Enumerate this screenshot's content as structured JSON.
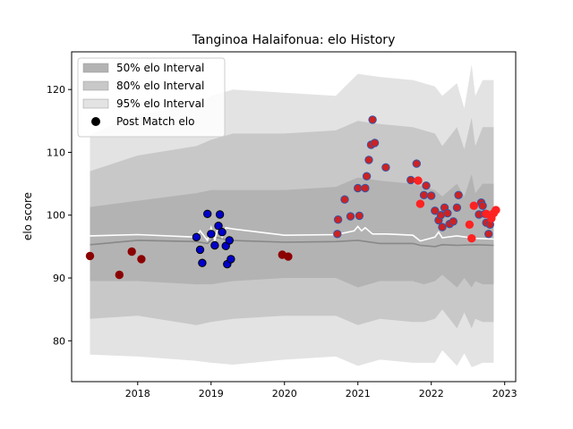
{
  "chart_data": {
    "type": "scatter",
    "title": "Tanginoa Halaifonua: elo History",
    "xlabel": "",
    "ylabel": "elo score",
    "xlim": [
      2017.1,
      2023.15
    ],
    "ylim": [
      73.5,
      126
    ],
    "x_ticks": [
      2018,
      2019,
      2020,
      2021,
      2022,
      2023
    ],
    "x_tick_labels": [
      "2018",
      "2019",
      "2020",
      "2021",
      "2022",
      "2023"
    ],
    "y_ticks": [
      80,
      90,
      100,
      110,
      120
    ],
    "y_tick_labels": [
      "80",
      "90",
      "100",
      "110",
      "120"
    ],
    "grid": false,
    "legend_position": "top-left",
    "legend": [
      {
        "label": "50% elo Interval",
        "color": "#b3b3b3"
      },
      {
        "label": "80% elo Interval",
        "color": "#c8c8c8"
      },
      {
        "label": "95% elo Interval",
        "color": "#e3e3e3"
      },
      {
        "label": "Post Match elo",
        "color": "#000000"
      }
    ],
    "mean_line": {
      "color": "#888888",
      "x": [
        2017.35,
        2018.0,
        2018.8,
        2018.95,
        2019.05,
        2019.25,
        2020.0,
        2020.7,
        2021.0,
        2021.3,
        2021.75,
        2021.85,
        2022.05,
        2022.15,
        2022.35,
        2022.6,
        2022.85
      ],
      "y": [
        95.3,
        96.0,
        95.8,
        95.5,
        96.5,
        96.0,
        95.7,
        95.8,
        96.0,
        95.5,
        95.5,
        95.2,
        95.0,
        95.3,
        95.2,
        95.3,
        95.2
      ]
    },
    "white_line": {
      "color": "#ffffff",
      "x": [
        2017.35,
        2018.0,
        2018.8,
        2018.85,
        2018.95,
        2019.0,
        2019.05,
        2019.1,
        2019.15,
        2019.2,
        2019.3,
        2020.0,
        2020.7,
        2020.95,
        2021.0,
        2021.05,
        2021.1,
        2021.2,
        2021.4,
        2021.75,
        2021.85,
        2022.05,
        2022.1,
        2022.15,
        2022.35,
        2022.6,
        2022.85
      ],
      "y": [
        96.7,
        96.9,
        96.5,
        97.5,
        96.0,
        98.0,
        96.0,
        98.3,
        96.5,
        98.0,
        97.8,
        96.8,
        96.9,
        97.5,
        98.2,
        97.5,
        98.0,
        97.0,
        97.0,
        96.8,
        95.9,
        96.5,
        97.3,
        96.4,
        96.7,
        96.3,
        96.2
      ]
    },
    "intervals": [
      {
        "label": "95% elo Interval",
        "color": "#e3e3e3",
        "x": [
          2017.35,
          2018.0,
          2018.8,
          2019.0,
          2019.3,
          2020.0,
          2020.7,
          2021.0,
          2021.3,
          2021.75,
          2021.9,
          2022.05,
          2022.15,
          2022.35,
          2022.45,
          2022.55,
          2022.6,
          2022.7,
          2022.85
        ],
        "upper": [
          112.8,
          116.0,
          117.5,
          119.0,
          120.0,
          119.5,
          119.0,
          122.5,
          122.0,
          121.5,
          121.0,
          120.5,
          119.0,
          121.0,
          117.0,
          124.0,
          119.0,
          121.5,
          121.5
        ],
        "lower": [
          77.8,
          77.5,
          76.8,
          76.5,
          76.2,
          77.0,
          77.5,
          76.0,
          77.0,
          76.5,
          76.5,
          76.5,
          78.5,
          76.0,
          78.0,
          75.8,
          76.0,
          76.5,
          76.5
        ]
      },
      {
        "label": "80% elo Interval",
        "color": "#c8c8c8",
        "x": [
          2017.35,
          2018.0,
          2018.8,
          2019.0,
          2019.3,
          2020.0,
          2020.7,
          2021.0,
          2021.3,
          2021.75,
          2021.9,
          2022.05,
          2022.15,
          2022.35,
          2022.45,
          2022.55,
          2022.6,
          2022.7,
          2022.85
        ],
        "upper": [
          107.0,
          109.5,
          111.0,
          112.0,
          113.0,
          113.0,
          113.5,
          115.0,
          114.5,
          114.0,
          113.5,
          113.0,
          111.0,
          114.0,
          110.5,
          115.5,
          111.0,
          114.0,
          114.0
        ],
        "lower": [
          83.5,
          84.0,
          82.5,
          83.0,
          83.5,
          84.0,
          84.0,
          82.5,
          83.5,
          83.0,
          83.0,
          83.5,
          85.0,
          82.0,
          84.5,
          82.0,
          83.5,
          83.0,
          83.0
        ]
      },
      {
        "label": "50% elo Interval",
        "color": "#b3b3b3",
        "x": [
          2017.35,
          2018.0,
          2018.8,
          2019.0,
          2019.3,
          2020.0,
          2020.7,
          2021.0,
          2021.3,
          2021.75,
          2021.9,
          2022.05,
          2022.15,
          2022.35,
          2022.45,
          2022.55,
          2022.6,
          2022.7,
          2022.85
        ],
        "upper": [
          101.3,
          102.3,
          103.5,
          104.0,
          104.0,
          104.0,
          104.5,
          106.0,
          105.5,
          105.0,
          104.5,
          104.0,
          103.0,
          105.0,
          103.0,
          106.5,
          103.5,
          105.0,
          105.0
        ],
        "lower": [
          89.5,
          89.5,
          89.0,
          89.0,
          89.5,
          90.0,
          90.0,
          88.5,
          89.5,
          89.5,
          89.0,
          89.5,
          90.5,
          88.5,
          90.0,
          88.5,
          89.5,
          89.0,
          89.0
        ]
      }
    ],
    "series": [
      {
        "edge": "#8b0000",
        "fill": "#8b0000",
        "x": [
          2017.35,
          2017.75,
          2017.92,
          2018.05,
          2019.97,
          2020.05
        ],
        "y": [
          93.5,
          90.5,
          94.2,
          93.0,
          93.7,
          93.4
        ]
      },
      {
        "edge": "#000000",
        "fill": "#0000cc",
        "x": [
          2018.8,
          2018.85,
          2018.88,
          2018.95,
          2019.0,
          2019.05,
          2019.1,
          2019.12,
          2019.15,
          2019.2,
          2019.22,
          2019.25,
          2019.27
        ],
        "y": [
          96.5,
          94.5,
          92.4,
          100.2,
          97.0,
          95.2,
          98.3,
          100.1,
          97.3,
          95.1,
          92.2,
          96.0,
          93.0
        ]
      },
      {
        "edge": "#3355aa",
        "fill": "#cc2222",
        "x": [
          2020.72,
          2020.73,
          2020.82,
          2020.9,
          2021.0,
          2021.02,
          2021.1,
          2021.12,
          2021.15,
          2021.18,
          2021.2,
          2021.23,
          2021.38,
          2021.72,
          2021.8,
          2021.9,
          2021.93,
          2022.0,
          2022.05,
          2022.1,
          2022.13,
          2022.15,
          2022.18,
          2022.22,
          2022.25,
          2022.3,
          2022.35,
          2022.37,
          2022.65,
          2022.68,
          2022.7,
          2022.73,
          2022.75,
          2022.78,
          2022.8
        ],
        "y": [
          97.0,
          99.3,
          102.5,
          99.8,
          104.3,
          99.9,
          104.3,
          106.2,
          108.8,
          111.2,
          115.2,
          111.5,
          107.6,
          105.6,
          108.2,
          103.2,
          104.7,
          103.1,
          100.7,
          99.2,
          100.0,
          98.1,
          101.2,
          100.3,
          98.6,
          99.0,
          101.2,
          103.2,
          100.1,
          102.0,
          101.5,
          100.2,
          98.8,
          97.0,
          98.5
        ]
      },
      {
        "edge": "#ff2222",
        "fill": "#ff2222",
        "x": [
          2021.82,
          2021.85,
          2022.52,
          2022.55,
          2022.58,
          2022.75,
          2022.82,
          2022.85,
          2022.88
        ],
        "y": [
          105.5,
          101.8,
          98.5,
          96.3,
          101.5,
          100.2,
          99.5,
          100.3,
          100.8
        ]
      }
    ]
  }
}
